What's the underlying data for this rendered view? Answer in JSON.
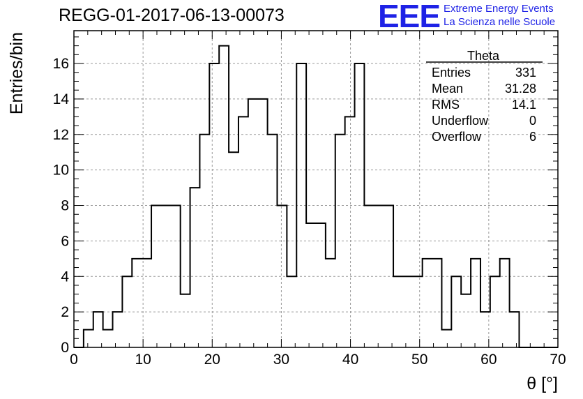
{
  "title": "REGG-01-2017-06-13-00073",
  "logo": {
    "mark": "EEE",
    "line1": "Extreme Energy Events",
    "line2": "La Scienza nelle Scuole"
  },
  "stats_box": {
    "name": "Theta",
    "rows": [
      {
        "label": "Entries",
        "value": "331"
      },
      {
        "label": "Mean",
        "value": "31.28"
      },
      {
        "label": "RMS",
        "value": "14.1"
      },
      {
        "label": "Underflow",
        "value": "0"
      },
      {
        "label": "Overflow",
        "value": "6"
      }
    ]
  },
  "chart_data": {
    "type": "bar",
    "histogram": true,
    "title": "REGG-01-2017-06-13-00073",
    "xlabel": "θ [°]",
    "ylabel": "Entries/bin",
    "xlim": [
      0,
      70
    ],
    "ylim": [
      0,
      17.85
    ],
    "grid": true,
    "bin_width": 1.4,
    "x_tick_labels": [
      "0",
      "10",
      "20",
      "30",
      "40",
      "50",
      "60",
      "70"
    ],
    "y_tick_labels": [
      "0",
      "2",
      "4",
      "6",
      "8",
      "10",
      "12",
      "14",
      "16"
    ],
    "x_ticks": [
      0,
      10,
      20,
      30,
      40,
      50,
      60,
      70
    ],
    "y_ticks": [
      0,
      2,
      4,
      6,
      8,
      10,
      12,
      14,
      16
    ],
    "bin_edges_start": 0,
    "values": [
      0,
      1,
      2,
      1,
      2,
      4,
      5,
      5,
      8,
      8,
      8,
      3,
      9,
      12,
      16,
      17,
      11,
      13,
      14,
      14,
      12,
      8,
      4,
      16,
      7,
      7,
      5,
      12,
      13,
      16,
      8,
      8,
      8,
      4,
      4,
      4,
      5,
      5,
      1,
      4,
      3,
      5,
      2,
      4,
      5,
      2,
      0,
      0,
      0,
      0
    ]
  }
}
